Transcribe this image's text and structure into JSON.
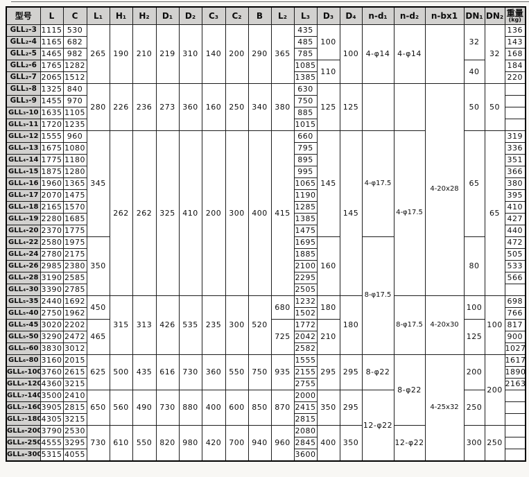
{
  "spec_table": {
    "headers": [
      {
        "id": "model",
        "label": "型号"
      },
      {
        "id": "L",
        "label": "L"
      },
      {
        "id": "C",
        "label": "C"
      },
      {
        "id": "L1",
        "label": "L₁"
      },
      {
        "id": "H1",
        "label": "H₁"
      },
      {
        "id": "H2",
        "label": "H₂"
      },
      {
        "id": "D1",
        "label": "D₁"
      },
      {
        "id": "D2",
        "label": "D₂"
      },
      {
        "id": "C3",
        "label": "C₃"
      },
      {
        "id": "C2",
        "label": "C₂"
      },
      {
        "id": "B",
        "label": "B"
      },
      {
        "id": "L2",
        "label": "L₂"
      },
      {
        "id": "L3",
        "label": "L₃"
      },
      {
        "id": "D3",
        "label": "D₃"
      },
      {
        "id": "D4",
        "label": "D₄"
      },
      {
        "id": "nd1",
        "label": "n-d₁"
      },
      {
        "id": "nd2",
        "label": "n-d₂"
      },
      {
        "id": "nbx1",
        "label": "n-bx1"
      },
      {
        "id": "DN1",
        "label": "DN₁"
      },
      {
        "id": "DN2",
        "label": "DN₂"
      },
      {
        "id": "weight",
        "label": "重量",
        "sublabel": "(kg)"
      }
    ],
    "columns": {
      "model": [
        [
          "GLL₂-3",
          1
        ],
        [
          "GLL₂-4",
          1
        ],
        [
          "GLL₂-5",
          1
        ],
        [
          "GLL₂-6",
          1
        ],
        [
          "GLL₂-7",
          1
        ],
        [
          "GLL₃-8",
          1
        ],
        [
          "GLL₃-9",
          1
        ],
        [
          "GLL₃-10",
          1
        ],
        [
          "GLL₃-11",
          1
        ],
        [
          "GLL₄-12",
          1
        ],
        [
          "GLL₄-13",
          1
        ],
        [
          "GLL₄-14",
          1
        ],
        [
          "GLL₄-15",
          1
        ],
        [
          "GLL₄-16",
          1
        ],
        [
          "GLL₄-17",
          1
        ],
        [
          "GLL₄-18",
          1
        ],
        [
          "GLL₄-19",
          1
        ],
        [
          "GLL₄-20",
          1
        ],
        [
          "GLL₄-22",
          1
        ],
        [
          "GLL₄-24",
          1
        ],
        [
          "GLL₄-26",
          1
        ],
        [
          "GLL₄-28",
          1
        ],
        [
          "GLL₄-30",
          1
        ],
        [
          "GLL₅-35",
          1
        ],
        [
          "GLL₅-40",
          1
        ],
        [
          "GLL₅-45",
          1
        ],
        [
          "GLL₅-50",
          1
        ],
        [
          "GLL₅-60",
          1
        ],
        [
          "GLL₆-80",
          1
        ],
        [
          "GLL₆-100",
          1
        ],
        [
          "GLL₆-120",
          1
        ],
        [
          "GLL₇-140",
          1
        ],
        [
          "GLL₇-160",
          1
        ],
        [
          "GLL₇-180",
          1
        ],
        [
          "GLL₈-200",
          1
        ],
        [
          "GLL₈-250",
          1
        ],
        [
          "GLL₈-300",
          1
        ]
      ],
      "L": [
        [
          "1115",
          1
        ],
        [
          "1165",
          1
        ],
        [
          "1465",
          1
        ],
        [
          "1765",
          1
        ],
        [
          "2065",
          1
        ],
        [
          "1325",
          1
        ],
        [
          "1455",
          1
        ],
        [
          "1635",
          1
        ],
        [
          "1720",
          1
        ],
        [
          "1555",
          1
        ],
        [
          "1675",
          1
        ],
        [
          "1775",
          1
        ],
        [
          "1875",
          1
        ],
        [
          "1960",
          1
        ],
        [
          "2070",
          1
        ],
        [
          "2165",
          1
        ],
        [
          "2280",
          1
        ],
        [
          "2370",
          1
        ],
        [
          "2580",
          1
        ],
        [
          "2780",
          1
        ],
        [
          "2985",
          1
        ],
        [
          "3190",
          1
        ],
        [
          "3390",
          1
        ],
        [
          "2440",
          1
        ],
        [
          "2750",
          1
        ],
        [
          "3020",
          1
        ],
        [
          "3290",
          1
        ],
        [
          "3830",
          1
        ],
        [
          "3160",
          1
        ],
        [
          "3760",
          1
        ],
        [
          "4360",
          1
        ],
        [
          "3500",
          1
        ],
        [
          "3905",
          1
        ],
        [
          "4305",
          1
        ],
        [
          "3790",
          1
        ],
        [
          "4555",
          1
        ],
        [
          "5315",
          1
        ]
      ],
      "C": [
        [
          "530",
          1
        ],
        [
          "682",
          1
        ],
        [
          "982",
          1
        ],
        [
          "1282",
          1
        ],
        [
          "1512",
          1
        ],
        [
          "840",
          1
        ],
        [
          "970",
          1
        ],
        [
          "1105",
          1
        ],
        [
          "1235",
          1
        ],
        [
          "960",
          1
        ],
        [
          "1080",
          1
        ],
        [
          "1180",
          1
        ],
        [
          "1280",
          1
        ],
        [
          "1365",
          1
        ],
        [
          "1475",
          1
        ],
        [
          "1570",
          1
        ],
        [
          "1685",
          1
        ],
        [
          "1775",
          1
        ],
        [
          "1975",
          1
        ],
        [
          "2175",
          1
        ],
        [
          "2380",
          1
        ],
        [
          "2585",
          1
        ],
        [
          "2785",
          1
        ],
        [
          "1692",
          1
        ],
        [
          "1962",
          1
        ],
        [
          "2202",
          1
        ],
        [
          "2472",
          1
        ],
        [
          "3012",
          1
        ],
        [
          "2015",
          1
        ],
        [
          "2615",
          1
        ],
        [
          "3215",
          1
        ],
        [
          "2410",
          1
        ],
        [
          "2815",
          1
        ],
        [
          "3215",
          1
        ],
        [
          "2530",
          1
        ],
        [
          "3295",
          1
        ],
        [
          "4055",
          1
        ]
      ],
      "L1": [
        [
          "265",
          5
        ],
        [
          "280",
          4
        ],
        [
          "345",
          9
        ],
        [
          "350",
          5
        ],
        [
          "450",
          2
        ],
        [
          "465",
          3
        ],
        [
          "625",
          3
        ],
        [
          "650",
          3
        ],
        [
          "730",
          3
        ]
      ],
      "H1": [
        [
          "190",
          5
        ],
        [
          "226",
          4
        ],
        [
          "262",
          14
        ],
        [
          "315",
          5
        ],
        [
          "500",
          3
        ],
        [
          "560",
          3
        ],
        [
          "610",
          3
        ]
      ],
      "H2": [
        [
          "210",
          5
        ],
        [
          "236",
          4
        ],
        [
          "262",
          14
        ],
        [
          "313",
          5
        ],
        [
          "435",
          3
        ],
        [
          "490",
          3
        ],
        [
          "550",
          3
        ]
      ],
      "D1": [
        [
          "219",
          5
        ],
        [
          "273",
          4
        ],
        [
          "325",
          14
        ],
        [
          "426",
          5
        ],
        [
          "616",
          3
        ],
        [
          "730",
          3
        ],
        [
          "820",
          3
        ]
      ],
      "D2": [
        [
          "310",
          5
        ],
        [
          "360",
          4
        ],
        [
          "410",
          14
        ],
        [
          "535",
          5
        ],
        [
          "730",
          3
        ],
        [
          "880",
          3
        ],
        [
          "980",
          3
        ]
      ],
      "C3": [
        [
          "140",
          5
        ],
        [
          "160",
          4
        ],
        [
          "200",
          14
        ],
        [
          "235",
          5
        ],
        [
          "360",
          3
        ],
        [
          "400",
          3
        ],
        [
          "420",
          3
        ]
      ],
      "C2": [
        [
          "200",
          5
        ],
        [
          "250",
          4
        ],
        [
          "300",
          14
        ],
        [
          "300",
          5
        ],
        [
          "550",
          3
        ],
        [
          "600",
          3
        ],
        [
          "700",
          3
        ]
      ],
      "B": [
        [
          "290",
          5
        ],
        [
          "340",
          4
        ],
        [
          "400",
          14
        ],
        [
          "520",
          5
        ],
        [
          "750",
          3
        ],
        [
          "850",
          3
        ],
        [
          "940",
          3
        ]
      ],
      "L2": [
        [
          "365",
          5
        ],
        [
          "380",
          4
        ],
        [
          "415",
          14
        ],
        [
          "680",
          2
        ],
        [
          "725",
          3
        ],
        [
          "935",
          3
        ],
        [
          "870",
          3
        ],
        [
          "960",
          3
        ]
      ],
      "L3": [
        [
          "435",
          1
        ],
        [
          "485",
          1
        ],
        [
          "785",
          1
        ],
        [
          "1085",
          1
        ],
        [
          "1385",
          1
        ],
        [
          "630",
          1
        ],
        [
          "750",
          1
        ],
        [
          "885",
          1
        ],
        [
          "1015",
          1
        ],
        [
          "660",
          1
        ],
        [
          "795",
          1
        ],
        [
          "895",
          1
        ],
        [
          "995",
          1
        ],
        [
          "1065",
          1
        ],
        [
          "1190",
          1
        ],
        [
          "1285",
          1
        ],
        [
          "1385",
          1
        ],
        [
          "1475",
          1
        ],
        [
          "1695",
          1
        ],
        [
          "1885",
          1
        ],
        [
          "2100",
          1
        ],
        [
          "2295",
          1
        ],
        [
          "2505",
          1
        ],
        [
          "1232",
          1
        ],
        [
          "1502",
          1
        ],
        [
          "1772",
          1
        ],
        [
          "2042",
          1
        ],
        [
          "2582",
          1
        ],
        [
          "1555",
          1
        ],
        [
          "2155",
          1
        ],
        [
          "2755",
          1
        ],
        [
          "2000",
          1
        ],
        [
          "2415",
          1
        ],
        [
          "2815",
          1
        ],
        [
          "2080",
          1
        ],
        [
          "2845",
          1
        ],
        [
          "3600",
          1
        ]
      ],
      "D3": [
        [
          "100",
          3
        ],
        [
          "110",
          2
        ],
        [
          "125",
          4
        ],
        [
          "145",
          9
        ],
        [
          "160",
          5
        ],
        [
          "180",
          2
        ],
        [
          "210",
          3
        ],
        [
          "295",
          3
        ],
        [
          "350",
          3
        ],
        [
          "400",
          3
        ]
      ],
      "D4": [
        [
          "100",
          5
        ],
        [
          "125",
          4
        ],
        [
          "145",
          14
        ],
        [
          "180",
          5
        ],
        [
          "295",
          3
        ],
        [
          "295",
          3
        ],
        [
          "350",
          3
        ]
      ],
      "nd1": [
        [
          "4-φ14",
          5
        ],
        [
          "",
          4
        ],
        [
          "4-φ17.5",
          9
        ],
        [
          "8-φ17.5",
          10
        ],
        [
          "8-φ22",
          3
        ],
        [
          "12-φ22",
          6
        ]
      ],
      "nd2": [
        [
          "4-φ14",
          5
        ],
        [
          "",
          4
        ],
        [
          "4-φ17.5",
          14
        ],
        [
          "8-φ17.5",
          5
        ],
        [
          "8-φ22",
          6
        ],
        [
          "12-φ22",
          3
        ]
      ],
      "nbx1": [
        [
          "",
          5
        ],
        [
          "4-20x28",
          18
        ],
        [
          "4-20x30",
          5
        ],
        [
          "4-25x32",
          9
        ]
      ],
      "DN1": [
        [
          "32",
          3
        ],
        [
          "40",
          2
        ],
        [
          "50",
          4
        ],
        [
          "65",
          9
        ],
        [
          "80",
          5
        ],
        [
          "100",
          2
        ],
        [
          "125",
          3
        ],
        [
          "200",
          3
        ],
        [
          "250",
          3
        ],
        [
          "300",
          3
        ]
      ],
      "DN2": [
        [
          "32",
          5
        ],
        [
          "50",
          4
        ],
        [
          "65",
          14
        ],
        [
          "100",
          5
        ],
        [
          "200",
          6
        ],
        [
          "250",
          3
        ]
      ],
      "weight": [
        [
          "136",
          1
        ],
        [
          "143",
          1
        ],
        [
          "168",
          1
        ],
        [
          "184",
          1
        ],
        [
          "220",
          1
        ],
        [
          "",
          1
        ],
        [
          "",
          1
        ],
        [
          "",
          1
        ],
        [
          "",
          1
        ],
        [
          "319",
          1
        ],
        [
          "336",
          1
        ],
        [
          "351",
          1
        ],
        [
          "366",
          1
        ],
        [
          "380",
          1
        ],
        [
          "395",
          1
        ],
        [
          "410",
          1
        ],
        [
          "427",
          1
        ],
        [
          "440",
          1
        ],
        [
          "472",
          1
        ],
        [
          "505",
          1
        ],
        [
          "533",
          1
        ],
        [
          "566",
          1
        ],
        [
          "",
          1
        ],
        [
          "698",
          1
        ],
        [
          "766",
          1
        ],
        [
          "817",
          1
        ],
        [
          "900",
          1
        ],
        [
          "1027",
          1
        ],
        [
          "1617",
          1
        ],
        [
          "1890",
          1
        ],
        [
          "2163",
          1
        ],
        [
          "",
          1
        ],
        [
          "",
          1
        ],
        [
          "",
          1
        ],
        [
          "",
          1
        ],
        [
          "",
          1
        ],
        [
          "",
          1
        ]
      ]
    }
  }
}
